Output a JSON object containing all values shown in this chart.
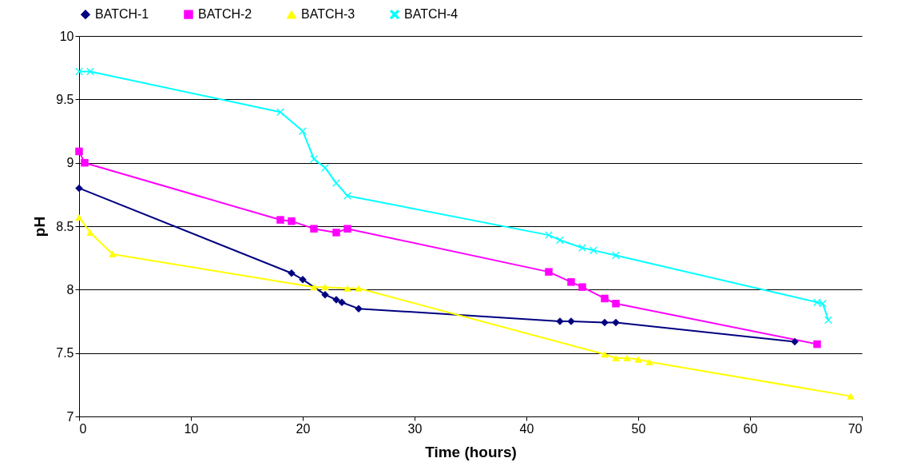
{
  "chart_data": {
    "type": "line",
    "xlabel": "Time (hours)",
    "ylabel": "pH",
    "xlim": [
      0,
      70
    ],
    "xticks": [
      0,
      10,
      20,
      30,
      40,
      50,
      60,
      70
    ],
    "ylim": [
      7,
      10
    ],
    "yticks": [
      7,
      7.5,
      8,
      8.5,
      9,
      9.5,
      10
    ],
    "grid": "y",
    "legend": "top",
    "line_style": "solid",
    "series": [
      {
        "name": "BATCH-1",
        "color": "#000080",
        "marker": "diamond",
        "x": [
          0,
          19,
          20,
          22,
          23,
          23.5,
          25,
          43,
          44,
          47,
          48,
          64
        ],
        "values": [
          8.8,
          8.13,
          8.08,
          7.96,
          7.92,
          7.9,
          7.85,
          7.75,
          7.75,
          7.74,
          7.74,
          7.59
        ]
      },
      {
        "name": "BATCH-2",
        "color": "#ff00ff",
        "marker": "square",
        "x": [
          0,
          0.5,
          18,
          19,
          21,
          23,
          24,
          42,
          44,
          45,
          47,
          48,
          66
        ],
        "values": [
          9.09,
          9.0,
          8.55,
          8.54,
          8.48,
          8.45,
          8.48,
          8.14,
          8.06,
          8.02,
          7.93,
          7.89,
          7.57
        ]
      },
      {
        "name": "BATCH-3",
        "color": "#ffff00",
        "marker": "triangle",
        "x": [
          0,
          1,
          3,
          21,
          22,
          24,
          25,
          47,
          48,
          49,
          50,
          51,
          69
        ],
        "values": [
          8.57,
          8.45,
          8.28,
          8.02,
          8.02,
          8.01,
          8.01,
          7.49,
          7.46,
          7.46,
          7.45,
          7.43,
          7.16
        ]
      },
      {
        "name": "BATCH-4",
        "color": "#00ffff",
        "marker": "cross",
        "x": [
          0,
          1,
          18,
          20,
          21,
          22,
          23,
          24,
          42,
          43,
          45,
          46,
          48,
          66,
          66.5,
          67
        ],
        "values": [
          9.72,
          9.72,
          9.4,
          9.25,
          9.03,
          8.96,
          8.84,
          8.74,
          8.43,
          8.39,
          8.33,
          8.31,
          8.27,
          7.9,
          7.89,
          7.76
        ]
      }
    ]
  }
}
